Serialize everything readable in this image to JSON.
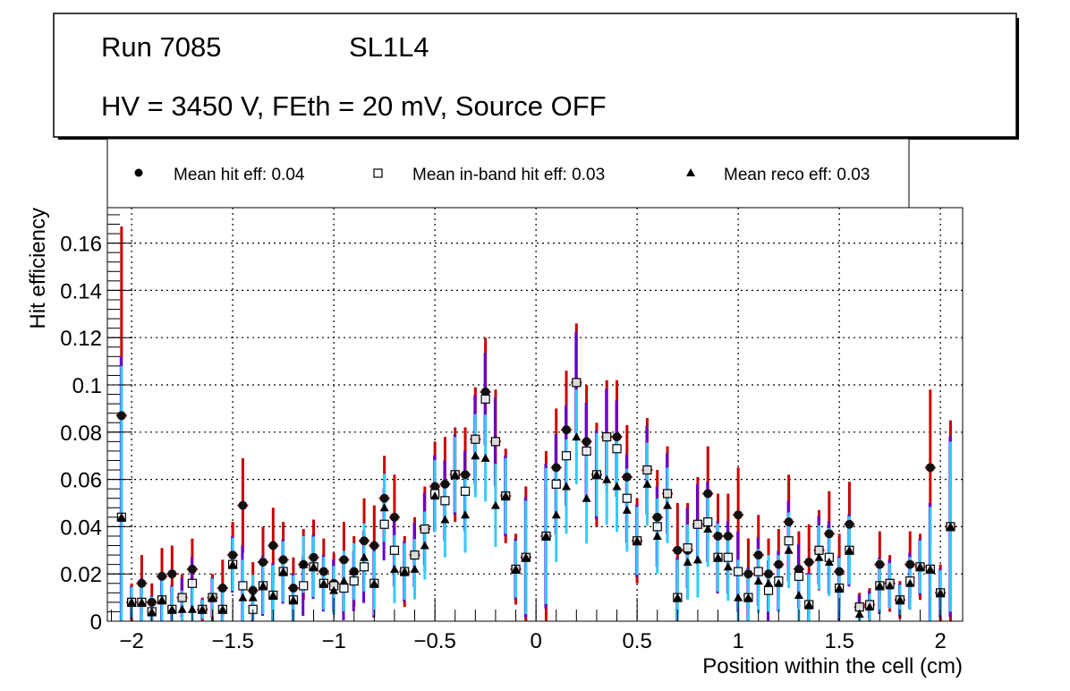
{
  "title_box": {
    "line1_run": "Run 7085",
    "line1_layer": "SL1L4",
    "line2": "HV = 3450 V, FEth = 20 mV, Source OFF"
  },
  "colors": {
    "hit_err": "#cc0000",
    "inband_err": "#6600cc",
    "reco_err": "#33ccff",
    "grid": "#000000"
  },
  "chart_data": {
    "type": "scatter",
    "xlabel": "Position within the cell (cm)",
    "ylabel": "Hit efficiency",
    "xlim": [
      -2.12,
      2.11
    ],
    "ylim": [
      0,
      0.175
    ],
    "grid": true,
    "legend_placement": "top",
    "xticks": [
      -2,
      -1.5,
      -1,
      -0.5,
      0,
      0.5,
      1,
      1.5,
      2
    ],
    "xtick_labels": [
      "−2",
      "−1.5",
      "−1",
      "−0.5",
      "0",
      "0.5",
      "1",
      "1.5",
      "2"
    ],
    "yticks": [
      0,
      0.02,
      0.04,
      0.06,
      0.08,
      0.1,
      0.12,
      0.14,
      0.16
    ],
    "ytick_labels": [
      "0",
      "0.02",
      "0.04",
      "0.06",
      "0.08",
      "0.1",
      "0.12",
      "0.14",
      "0.16"
    ],
    "x_start": -2.05,
    "x_step": 0.05,
    "series": [
      {
        "name": "Mean hit  eff: 0.04",
        "marker": "circle",
        "values": [
          0.087,
          0.008,
          0.016,
          0.008,
          0.019,
          0.02,
          0.01,
          0.022,
          0.005,
          0.01,
          0.014,
          0.028,
          0.049,
          0.013,
          0.025,
          0.032,
          0.026,
          0.014,
          0.024,
          0.027,
          0.021,
          0.016,
          0.026,
          0.021,
          0.034,
          0.032,
          0.052,
          0.044,
          0.021,
          0.028,
          0.039,
          0.057,
          0.058,
          0.062,
          0.062,
          0.077,
          0.097,
          0.076,
          0.053,
          0.022,
          0.027,
          null,
          0.036,
          0.065,
          0.081,
          0.101,
          0.076,
          0.062,
          0.078,
          0.078,
          0.061,
          0.034,
          0.064,
          0.044,
          0.054,
          0.03,
          0.03,
          0.041,
          0.054,
          0.036,
          0.036,
          0.045,
          0.02,
          0.028,
          0.02,
          0.024,
          0.042,
          0.022,
          0.025,
          0.03,
          0.037,
          0.021,
          0.041,
          0.006,
          0.007,
          0.024,
          0.016,
          0.009,
          0.024,
          0.023,
          0.065,
          0.012,
          0.04
        ]
      },
      {
        "name": "Mean in-band hit eff: 0.03",
        "marker": "open-square",
        "values": [
          0.044,
          0.008,
          0.008,
          0.004,
          0.009,
          0.005,
          0.01,
          0.016,
          0.005,
          0.01,
          0.005,
          0.024,
          0.015,
          0.005,
          0.015,
          0.011,
          0.021,
          0.009,
          0.015,
          0.023,
          0.016,
          0.015,
          0.014,
          0.017,
          0.023,
          0.016,
          0.041,
          0.03,
          0.021,
          0.028,
          0.039,
          0.054,
          0.051,
          0.062,
          0.055,
          0.077,
          0.094,
          0.076,
          0.053,
          0.022,
          0.027,
          null,
          0.036,
          0.058,
          0.07,
          0.101,
          0.072,
          0.062,
          0.078,
          0.073,
          0.052,
          0.034,
          0.064,
          0.04,
          0.054,
          0.01,
          0.031,
          0.041,
          0.042,
          0.027,
          0.027,
          0.021,
          0.01,
          0.021,
          0.013,
          0.017,
          0.034,
          0.019,
          0.007,
          0.03,
          0.027,
          0.014,
          0.03,
          0.006,
          0.007,
          0.015,
          0.016,
          0.009,
          0.017,
          0.023,
          0.022,
          0.012,
          0.04
        ]
      },
      {
        "name": "Mean reco eff: 0.03",
        "marker": "triangle",
        "values": [
          0.044,
          0.008,
          0.008,
          0.004,
          0.009,
          0.005,
          0.005,
          0.005,
          0.005,
          0.01,
          0.005,
          0.024,
          0.01,
          0.01,
          0.015,
          0.011,
          0.021,
          0.009,
          0.024,
          0.023,
          0.016,
          0.013,
          0.017,
          0.021,
          0.027,
          0.016,
          0.048,
          0.022,
          0.021,
          0.022,
          0.032,
          0.053,
          0.043,
          0.062,
          0.045,
          0.07,
          0.069,
          0.049,
          0.053,
          0.022,
          0.027,
          null,
          0.036,
          0.045,
          0.057,
          0.078,
          0.052,
          0.062,
          0.06,
          0.057,
          0.047,
          0.034,
          0.058,
          0.036,
          0.049,
          0.01,
          0.025,
          0.026,
          0.039,
          0.027,
          0.023,
          0.01,
          0.01,
          0.017,
          0.016,
          0.016,
          0.03,
          0.011,
          0.007,
          0.027,
          0.025,
          0.014,
          0.03,
          0.003,
          0.006,
          0.015,
          0.015,
          0.009,
          0.016,
          0.023,
          0.022,
          0.012,
          0.04
        ]
      }
    ],
    "errors": [
      0.08,
      0.008,
      0.012,
      0.008,
      0.012,
      0.012,
      0.01,
      0.013,
      0.005,
      0.01,
      0.012,
      0.014,
      0.02,
      0.012,
      0.015,
      0.016,
      0.016,
      0.013,
      0.015,
      0.016,
      0.014,
      0.013,
      0.016,
      0.015,
      0.018,
      0.017,
      0.018,
      0.018,
      0.015,
      0.016,
      0.018,
      0.019,
      0.02,
      0.02,
      0.02,
      0.022,
      0.023,
      0.022,
      0.02,
      0.015,
      0.03,
      null,
      0.036,
      0.025,
      0.025,
      0.025,
      0.024,
      0.022,
      0.024,
      0.024,
      0.022,
      0.018,
      0.022,
      0.02,
      0.02,
      0.02,
      0.02,
      0.02,
      0.02,
      0.018,
      0.018,
      0.02,
      0.015,
      0.017,
      0.015,
      0.015,
      0.02,
      0.016,
      0.016,
      0.017,
      0.018,
      0.016,
      0.018,
      0.006,
      0.007,
      0.014,
      0.012,
      0.008,
      0.014,
      0.014,
      0.033,
      0.012,
      0.045
    ]
  }
}
